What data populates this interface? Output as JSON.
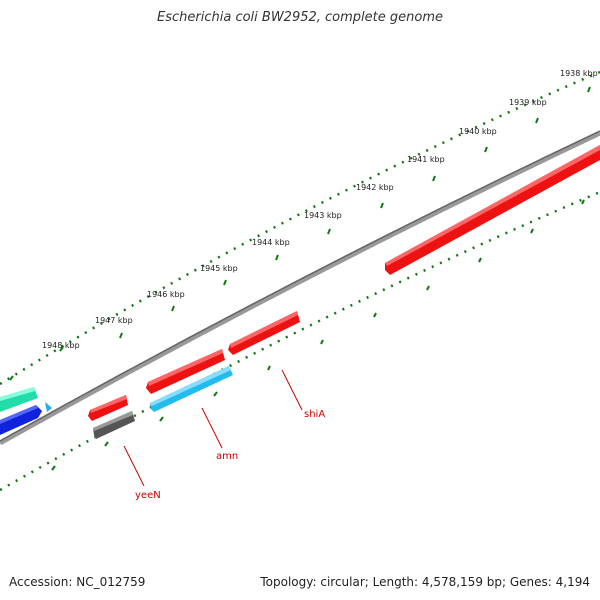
{
  "title": "Escherichia coli BW2952, complete genome",
  "footer": {
    "accession": "Accession: NC_012759",
    "summary": "Topology: circular; Length: 4,578,159 bp; Genes: 4,194"
  },
  "scale_labels": [
    "1938 kbp",
    "1939 kbp",
    "1940 kbp",
    "1941 kbp",
    "1942 kbp",
    "1943 kbp",
    "1944 kbp",
    "1945 kbp",
    "1946 kbp",
    "1947 kbp",
    "1948 kbp"
  ],
  "gene_labels": {
    "shiA": "shiA",
    "amn": "amn",
    "yeeN": "yeeN"
  },
  "colors": {
    "backbone": "#888888",
    "forward_gene": "#ee1111",
    "reverse_gene_cyan": "#22bbee",
    "reverse_gene_gray": "#666666",
    "teal_gene": "#22ddaa",
    "blue_gene": "#1122dd",
    "tick": "#117711",
    "label": "#cc0000"
  }
}
